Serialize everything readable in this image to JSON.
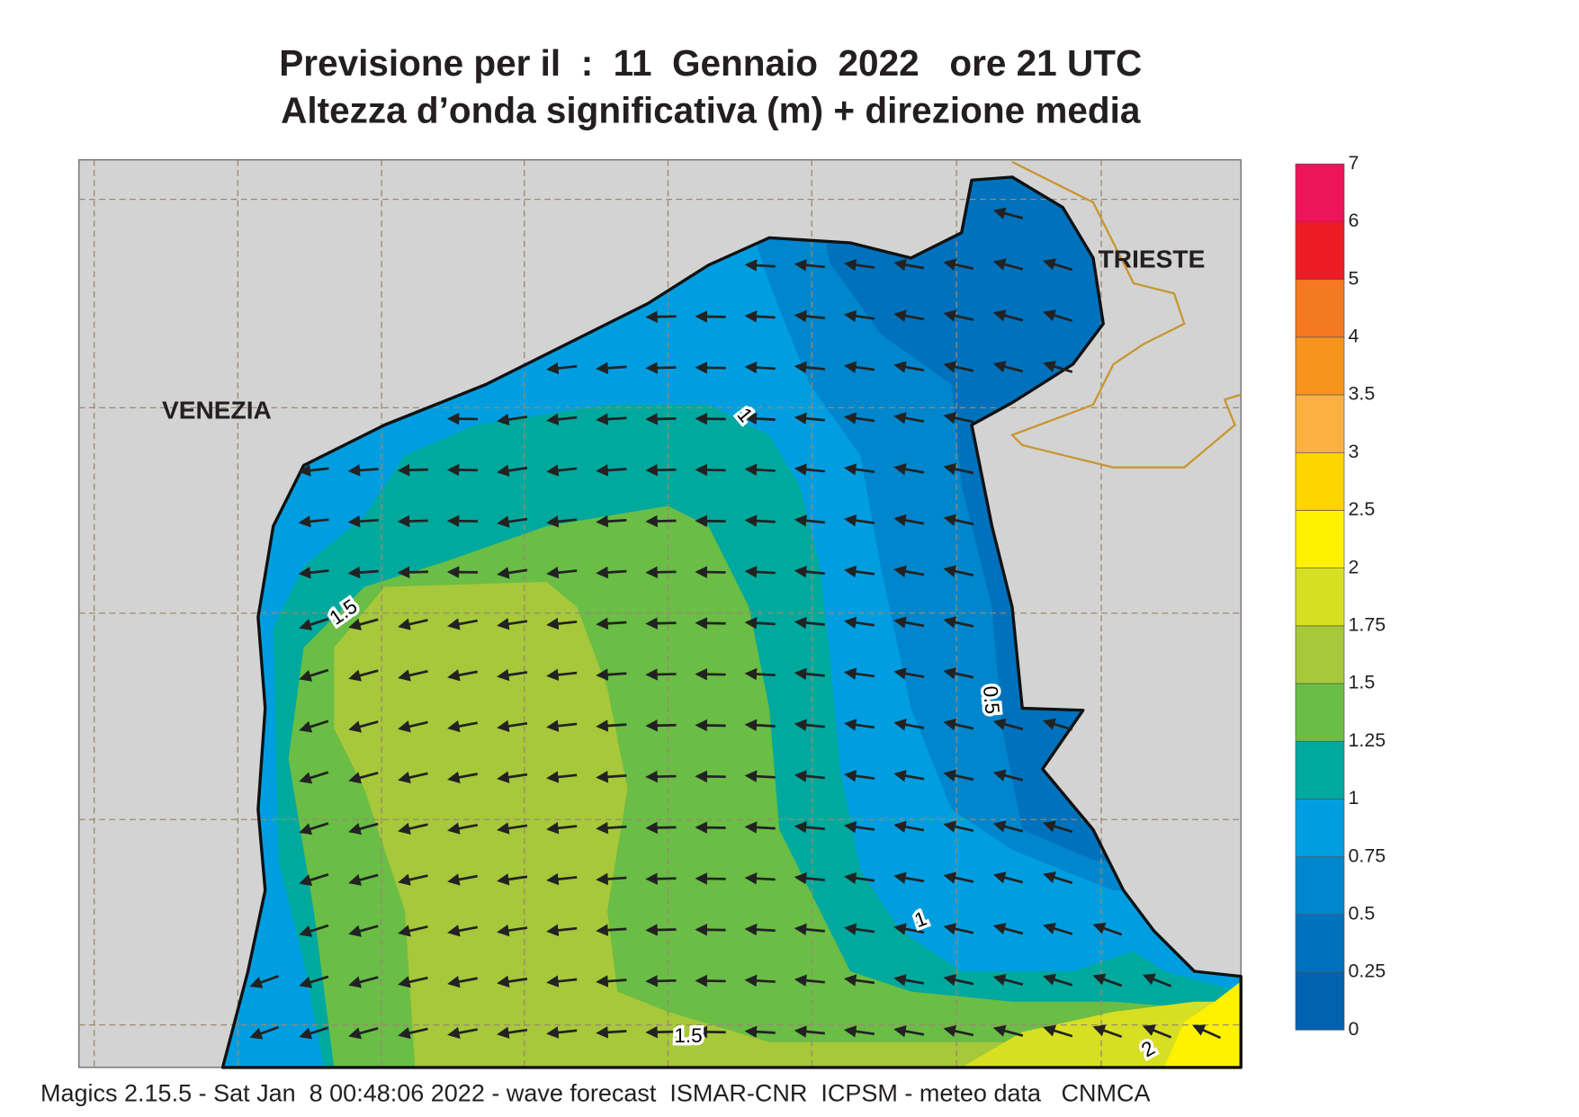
{
  "title": [
    "Previsione per il  :  11  Gennaio  2022   ore 21 UTC",
    "Altezza d’onda significativa (m) + direzione media"
  ],
  "places": [
    "VENEZIA",
    "TRIESTE"
  ],
  "contour_labels": [
    "1",
    "1.5",
    "0.5",
    "1",
    "1.5",
    "2"
  ],
  "legend": {
    "levels": [
      0,
      0.25,
      0.5,
      0.75,
      1,
      1.25,
      1.5,
      1.75,
      2,
      2.5,
      3,
      3.5,
      4,
      5,
      6,
      7
    ],
    "colors": [
      "#0062b0",
      "#0071bc",
      "#0086cc",
      "#009ee0",
      "#00a99d",
      "#6abd45",
      "#a6c83a",
      "#d7df23",
      "#fff200",
      "#ffd400",
      "#fbb040",
      "#f7941d",
      "#f47920",
      "#ed1c24",
      "#ed145b"
    ]
  },
  "footer": "Magics 2.15.5 - Sat Jan  8 00:48:06 2022 - wave forecast  ISMAR-CNR  ICPSM - meteo data   CNMCA"
}
